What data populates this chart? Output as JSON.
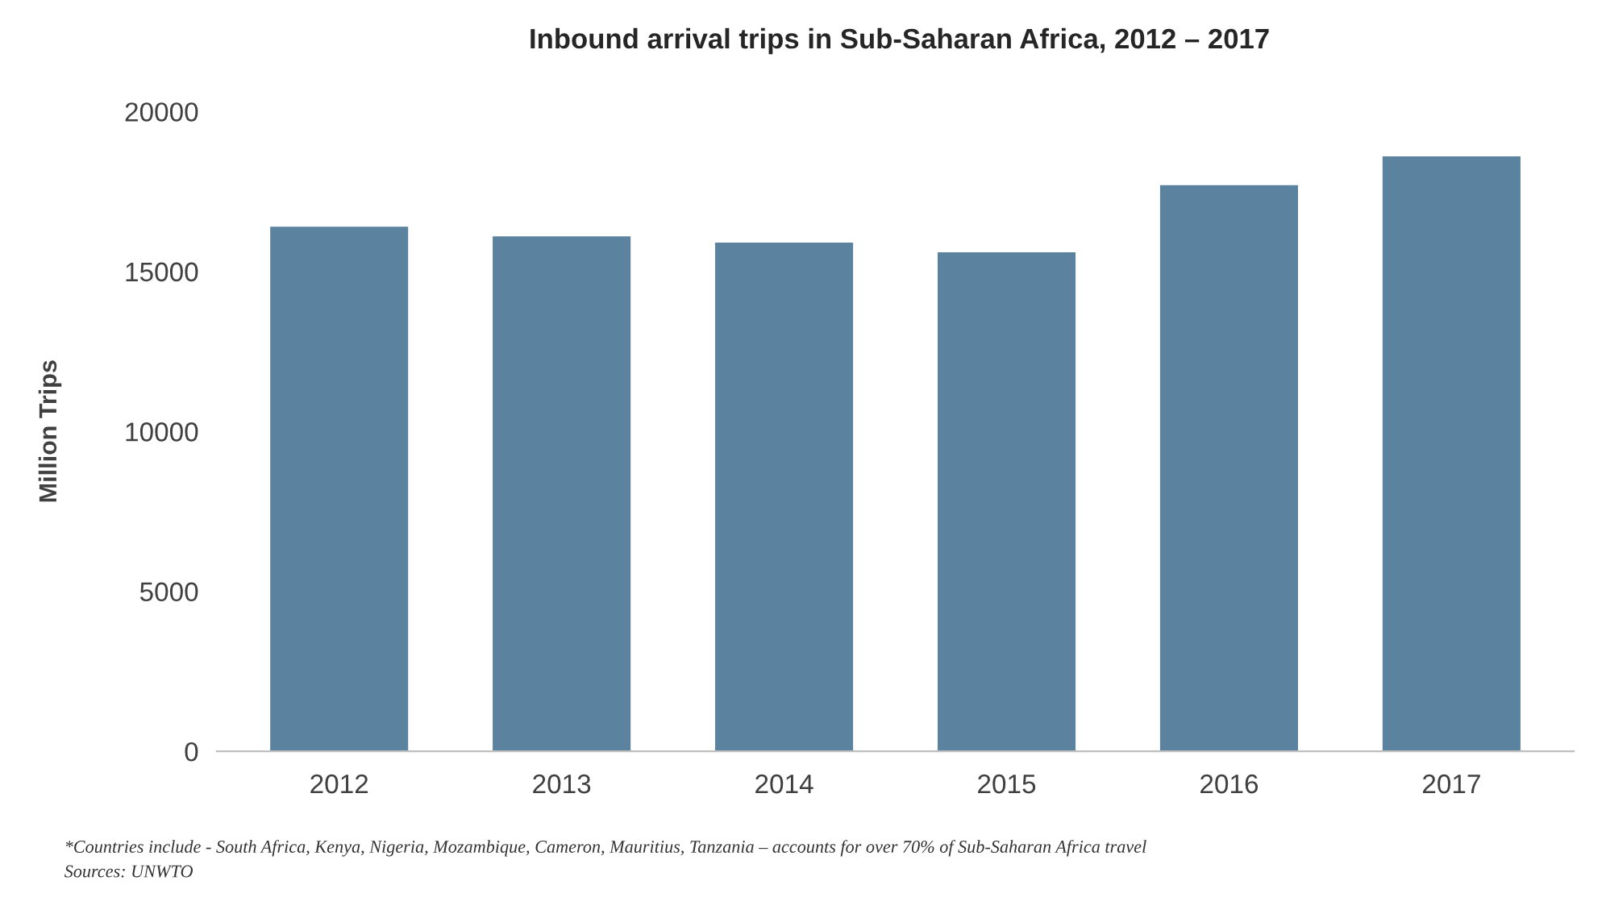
{
  "chart_data": {
    "type": "bar",
    "title": "Inbound arrival trips in Sub-Saharan Africa, 2012 – 2017",
    "ylabel": "Million Trips",
    "categories": [
      "2012",
      "2013",
      "2014",
      "2015",
      "2016",
      "2017"
    ],
    "values": [
      16400,
      16100,
      15900,
      15600,
      17700,
      18600
    ],
    "color": "#5b83a0",
    "ylim": [
      0,
      20000
    ],
    "yticks": [
      0,
      5000,
      10000,
      15000,
      20000
    ],
    "grid": false,
    "legend": false,
    "annotations": [
      "*Countries include - South Africa, Kenya, Nigeria, Mozambique, Cameron, Mauritius, Tanzania – accounts for over 70% of Sub-Saharan Africa travel",
      "Sources: UNWTO"
    ]
  }
}
